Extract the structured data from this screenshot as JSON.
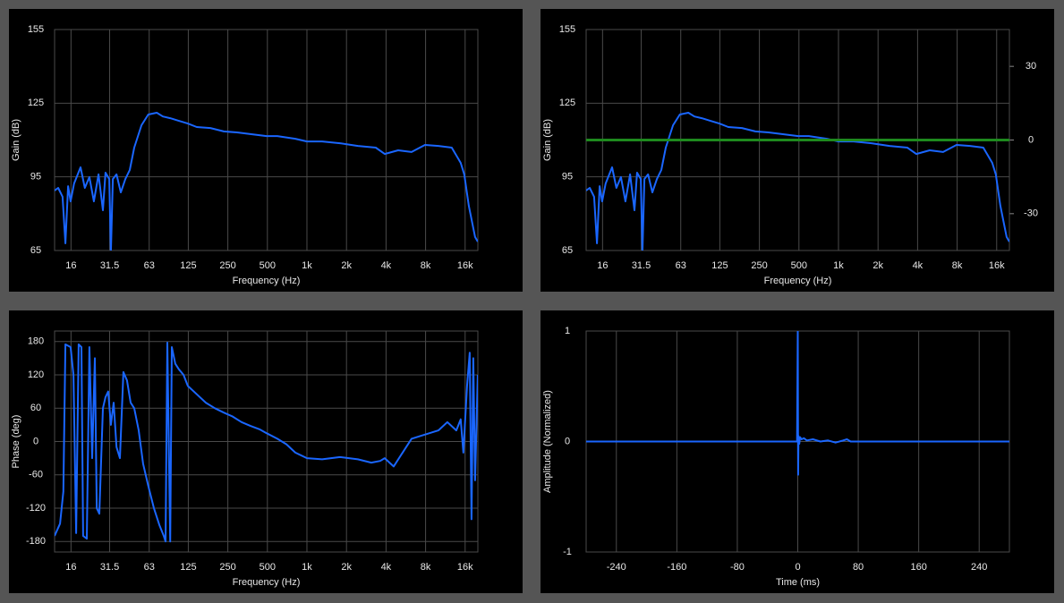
{
  "chart_data": [
    {
      "type": "line",
      "x_label": "Frequency (Hz)",
      "y_label": "Gain (dB)",
      "log_x": true,
      "grid": true,
      "xlim": [
        12,
        20000
      ],
      "ylim": [
        65,
        155
      ],
      "xticks": [
        16,
        31.5,
        63,
        125,
        250,
        500,
        {
          "value": 1000,
          "label": "1k"
        },
        {
          "value": 2000,
          "label": "2k"
        },
        {
          "value": 4000,
          "label": "4k"
        },
        {
          "value": 8000,
          "label": "8k"
        },
        {
          "value": 16000,
          "label": "16k"
        }
      ],
      "yticks": [
        155,
        125,
        95,
        65
      ],
      "series": [
        {
          "color": "#1a66ff",
          "x": [
            12,
            12.77,
            13.8,
            14.5,
            15.2,
            15.9,
            16.9,
            18.9,
            20.4,
            22.1,
            23.9,
            25.9,
            28,
            29.3,
            31.3,
            32.2,
            33.3,
            35.5,
            38.3,
            41.5,
            44.8,
            48.5,
            55,
            62,
            72,
            80,
            91,
            106,
            124,
            145,
            184,
            233,
            294,
            372,
            493,
            595,
            815,
            1000,
            1306,
            1785,
            2442,
            3341,
            3907,
            4948,
            6258,
            7914,
            10010,
            12660,
            14800,
            15770,
            17060,
            18180,
            19050,
            19980
          ],
          "values": [
            89.4,
            90.5,
            86.9,
            67.9,
            91.2,
            85,
            92.3,
            98.9,
            90.5,
            94.9,
            85,
            96,
            81.4,
            96.7,
            94.1,
            64,
            94.1,
            96,
            88.7,
            94.1,
            97.8,
            106.9,
            116,
            120.4,
            121.1,
            119.6,
            118.9,
            117.8,
            116.7,
            115.3,
            114.9,
            113.5,
            113.1,
            112.4,
            111.6,
            111.6,
            110.5,
            109.4,
            109.4,
            108.7,
            107.6,
            106.9,
            104.3,
            105.8,
            105.1,
            108,
            107.6,
            106.9,
            100.7,
            96,
            83.2,
            75.9,
            70.5,
            68.6
          ]
        }
      ]
    },
    {
      "type": "line",
      "x_label": "Frequency (Hz)",
      "y_label": "Gain (dB)",
      "log_x": true,
      "grid": true,
      "xlim": [
        12,
        20000
      ],
      "ylim": [
        65,
        155
      ],
      "y2lim": [
        -45,
        45
      ],
      "xticks": [
        16,
        31.5,
        63,
        125,
        250,
        500,
        {
          "value": 1000,
          "label": "1k"
        },
        {
          "value": 2000,
          "label": "2k"
        },
        {
          "value": 4000,
          "label": "4k"
        },
        {
          "value": 8000,
          "label": "8k"
        },
        {
          "value": 16000,
          "label": "16k"
        }
      ],
      "yticks": [
        155,
        125,
        95,
        65
      ],
      "y2ticks": [
        30,
        0,
        -30
      ],
      "series": [
        {
          "color": "#1a66ff",
          "x": [
            12,
            12.77,
            13.8,
            14.5,
            15.2,
            15.9,
            16.9,
            18.9,
            20.4,
            22.1,
            23.9,
            25.9,
            28,
            29.3,
            31.3,
            32.2,
            33.3,
            35.5,
            38.3,
            41.5,
            44.8,
            48.5,
            55,
            62,
            72,
            80,
            91,
            106,
            124,
            145,
            184,
            233,
            294,
            372,
            493,
            595,
            815,
            1000,
            1306,
            1785,
            2442,
            3341,
            3907,
            4948,
            6258,
            7914,
            10010,
            12660,
            14800,
            15770,
            17060,
            18180,
            19050,
            19980
          ],
          "values": [
            89.4,
            90.5,
            86.9,
            67.9,
            91.2,
            85,
            92.3,
            98.9,
            90.5,
            94.9,
            85,
            96,
            81.4,
            96.7,
            94.1,
            64,
            94.1,
            96,
            88.7,
            94.1,
            97.8,
            106.9,
            116,
            120.4,
            121.1,
            119.6,
            118.9,
            117.8,
            116.7,
            115.3,
            114.9,
            113.5,
            113.1,
            112.4,
            111.6,
            111.6,
            110.5,
            109.4,
            109.4,
            108.7,
            107.6,
            106.9,
            104.3,
            105.8,
            105.1,
            108,
            107.6,
            106.9,
            100.7,
            96,
            83.2,
            75.9,
            70.5,
            68.6
          ]
        },
        {
          "color": "#1e8a1e",
          "axis": "y2",
          "x": [
            12,
            20000
          ],
          "values": [
            0,
            0
          ]
        }
      ]
    },
    {
      "type": "line",
      "x_label": "Frequency (Hz)",
      "y_label": "Phase (deg)",
      "log_x": true,
      "grid": true,
      "xlim": [
        12,
        20000
      ],
      "ylim": [
        -199,
        199
      ],
      "xticks": [
        16,
        31.5,
        63,
        125,
        250,
        500,
        {
          "value": 1000,
          "label": "1k"
        },
        {
          "value": 2000,
          "label": "2k"
        },
        {
          "value": 4000,
          "label": "4k"
        },
        {
          "value": 8000,
          "label": "8k"
        },
        {
          "value": 16000,
          "label": "16k"
        }
      ],
      "yticks": [
        180,
        120,
        60,
        0,
        -60,
        -120,
        -180
      ],
      "series": [
        {
          "color": "#1a66ff",
          "x": [
            12,
            13.2,
            14,
            14.5,
            15.9,
            16.7,
            17.5,
            18.3,
            19.2,
            19.8,
            21.1,
            22.1,
            23.2,
            24.3,
            25.1,
            26.3,
            28,
            29.3,
            30.7,
            32.2,
            33.8,
            35.5,
            37.7,
            40.1,
            42.7,
            45.5,
            48.5,
            52.4,
            56.6,
            62,
            68.4,
            75.2,
            81.3,
            83.9,
            86.6,
            91,
            93.6,
            99.6,
            106,
            115,
            124,
            145,
            170,
            199,
            233,
            272,
            318,
            372,
            435,
            493,
            595,
            698,
            815,
            1000,
            1306,
            1785,
            2442,
            3090,
            3614,
            3907,
            4574,
            5348,
            6258,
            7310,
            8563,
            10010,
            11710,
            13700,
            14800,
            15520,
            16540,
            17340,
            17890,
            18460,
            19050,
            19980
          ],
          "values": [
            -170,
            -148,
            -90,
            175,
            170,
            120,
            -165,
            175,
            170,
            -170,
            -175,
            170,
            -30,
            150,
            -120,
            -130,
            60,
            80,
            90,
            30,
            70,
            -10,
            -30,
            125,
            110,
            70,
            60,
            20,
            -40,
            -80,
            -120,
            -150,
            -170,
            -180,
            178,
            -180,
            170,
            140,
            130,
            120,
            100,
            85,
            70,
            60,
            52,
            45,
            35,
            28,
            22,
            15,
            5,
            -5,
            -20,
            -30,
            -32,
            -28,
            -32,
            -38,
            -35,
            -30,
            -45,
            -20,
            5,
            10,
            15,
            20,
            35,
            20,
            40,
            -20,
            100,
            160,
            -140,
            150,
            -70,
            120
          ]
        }
      ]
    },
    {
      "type": "line",
      "x_label": "Time (ms)",
      "y_label": "Amplitude (Normalized)",
      "log_x": false,
      "grid": true,
      "xlim": [
        -280,
        280
      ],
      "ylim": [
        -1,
        1
      ],
      "xticks": [
        -240,
        -160,
        -80,
        0,
        80,
        160,
        240
      ],
      "yticks": [
        1,
        0,
        -1
      ],
      "series": [
        {
          "color": "#1a66ff",
          "x": [
            -280,
            -1,
            0,
            0.5,
            1,
            2,
            3,
            5,
            8,
            12,
            20,
            30,
            40,
            50,
            60,
            65,
            70,
            280
          ],
          "values": [
            0,
            0,
            1,
            -0.3,
            0.05,
            -0.02,
            0.04,
            0.02,
            0.03,
            0.01,
            0.02,
            0,
            0.01,
            -0.01,
            0.01,
            0.02,
            0,
            0
          ]
        }
      ]
    }
  ]
}
